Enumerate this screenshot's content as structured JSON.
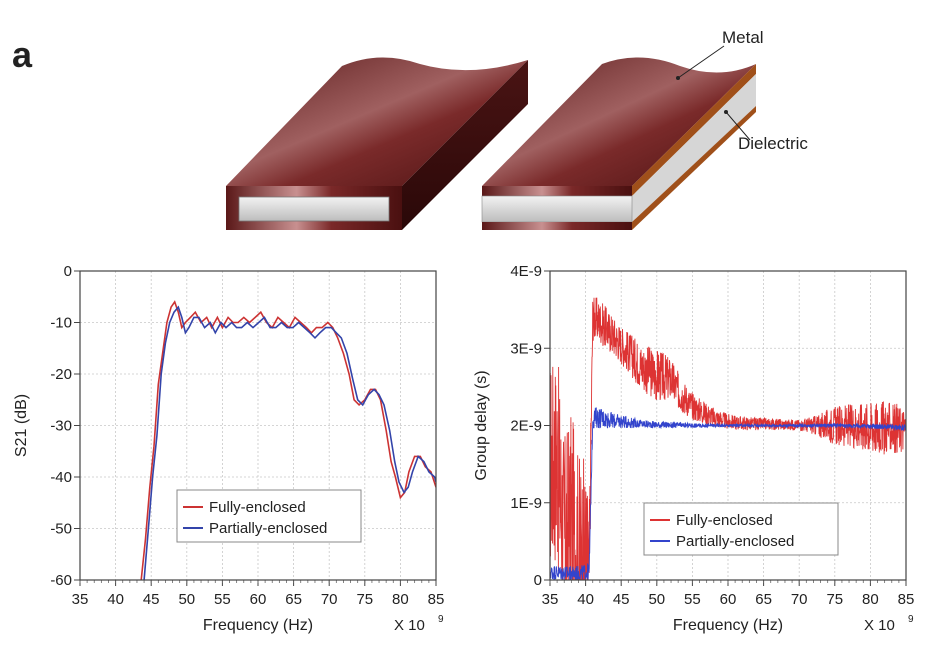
{
  "panel_label": "a",
  "illustration": {
    "label_metal": "Metal",
    "label_dielectric": "Dielectric",
    "metal_color": "#6a1c1c",
    "metal_edge_color": "#3a0e0e",
    "dielectric_color": "#d0d0d0",
    "copper_edge_color": "#a0501a"
  },
  "chart_data": [
    {
      "type": "line",
      "title": "",
      "xlabel": "Frequency (Hz)",
      "ylabel": "S21 (dB)",
      "x_multiplier": "X 10",
      "x_multiplier_exp": "9",
      "xlim": [
        35,
        85
      ],
      "ylim": [
        -60,
        0
      ],
      "xticks": [
        "35",
        "40",
        "45",
        "50",
        "55",
        "60",
        "65",
        "70",
        "75",
        "80",
        "85"
      ],
      "yticks": [
        "0",
        "-10",
        "-20",
        "-30",
        "-40",
        "-50",
        "-60"
      ],
      "grid": true,
      "legend_position": "bottom-center",
      "series": [
        {
          "name": "Fully-enclosed",
          "color": "#cc3333",
          "x": [
            43.6,
            44.2,
            44.8,
            45.4,
            46.0,
            46.6,
            47.2,
            47.8,
            48.3,
            48.8,
            49.3,
            49.8,
            50.5,
            51.2,
            52.0,
            52.8,
            53.5,
            54.3,
            55.0,
            55.8,
            56.5,
            57.2,
            58.0,
            58.8,
            59.6,
            60.4,
            61.2,
            62.0,
            62.8,
            63.6,
            64.4,
            65.2,
            66.0,
            66.8,
            67.5,
            68.2,
            69.0,
            69.8,
            70.5,
            71.2,
            72.0,
            72.8,
            73.5,
            74.2,
            75.0,
            75.8,
            76.5,
            77.2,
            78.0,
            78.7,
            79.3,
            80.0,
            80.6,
            81.2,
            82.0,
            82.8,
            83.5,
            84.3,
            85.0
          ],
          "y": [
            -60,
            -52,
            -42,
            -34,
            -22,
            -16,
            -10,
            -7,
            -6,
            -8,
            -11,
            -10,
            -9,
            -8,
            -10,
            -9,
            -11,
            -9,
            -11,
            -9,
            -10,
            -10,
            -9,
            -10,
            -9,
            -8,
            -10,
            -11,
            -9,
            -10,
            -11,
            -9,
            -10,
            -11,
            -12,
            -11,
            -11,
            -10,
            -11,
            -13,
            -16,
            -20,
            -25,
            -26,
            -25,
            -23,
            -23,
            -25,
            -31,
            -37,
            -40,
            -44,
            -43,
            -39,
            -36,
            -36,
            -38,
            -39,
            -42
          ]
        },
        {
          "name": "Partially-enclosed",
          "color": "#3344aa",
          "x": [
            44.0,
            44.6,
            45.2,
            45.8,
            46.4,
            47.0,
            47.6,
            48.2,
            48.8,
            49.3,
            49.8,
            50.3,
            51.0,
            51.7,
            52.5,
            53.3,
            54.0,
            54.8,
            55.5,
            56.3,
            57.0,
            57.7,
            58.5,
            59.3,
            60.1,
            60.9,
            61.7,
            62.5,
            63.3,
            64.1,
            64.9,
            65.7,
            66.5,
            67.3,
            68.0,
            68.7,
            69.5,
            70.3,
            71.0,
            71.7,
            72.5,
            73.3,
            74.0,
            74.7,
            75.5,
            76.3,
            77.0,
            77.7,
            78.5,
            79.2,
            79.8,
            80.5,
            81.1,
            81.7,
            82.5,
            83.3,
            84.0,
            84.8,
            85.0
          ],
          "y": [
            -60,
            -50,
            -40,
            -32,
            -20,
            -14,
            -10,
            -8,
            -7,
            -9,
            -12,
            -11,
            -9,
            -9,
            -11,
            -10,
            -12,
            -10,
            -11,
            -10,
            -11,
            -11,
            -10,
            -11,
            -10,
            -9,
            -11,
            -11,
            -10,
            -11,
            -11,
            -10,
            -11,
            -12,
            -13,
            -12,
            -11,
            -11,
            -12,
            -13,
            -16,
            -21,
            -25,
            -26,
            -24,
            -23,
            -24,
            -26,
            -31,
            -37,
            -41,
            -43,
            -42,
            -39,
            -36,
            -37,
            -39,
            -40,
            -41
          ]
        }
      ]
    },
    {
      "type": "line",
      "title": "",
      "xlabel": "Frequency (Hz)",
      "ylabel": "Group delay (s)",
      "x_multiplier": "X 10",
      "x_multiplier_exp": "9",
      "xlim": [
        35,
        85
      ],
      "ylim": [
        0,
        4e-09
      ],
      "xticks": [
        "35",
        "40",
        "45",
        "50",
        "55",
        "60",
        "65",
        "70",
        "75",
        "80",
        "85"
      ],
      "yticks": [
        "4E-9",
        "3E-9",
        "2E-9",
        "1E-9",
        "0"
      ],
      "grid": true,
      "legend_position": "bottom-center",
      "series": [
        {
          "name": "Fully-enclosed",
          "color": "#dd3333",
          "trend": {
            "x": [
              35,
              36,
              37,
              38,
              39,
              40,
              40.5,
              41,
              42,
              43,
              44,
              45,
              46,
              47,
              48,
              49,
              50,
              51,
              52,
              53,
              54,
              55,
              56,
              57,
              58,
              59,
              60,
              62,
              64,
              66,
              68,
              70,
              72,
              74,
              76,
              78,
              80,
              82,
              84,
              85
            ],
            "y": [
              1.5e-09,
              1.6e-09,
              5e-10,
              8e-10,
              3e-10,
              2e-10,
              1e-10,
              3.4e-09,
              3.35e-09,
              3.25e-09,
              3.15e-09,
              3.05e-09,
              2.95e-09,
              2.85e-09,
              2.75e-09,
              2.7e-09,
              2.65e-09,
              2.62e-09,
              2.6e-09,
              2.45e-09,
              2.35e-09,
              2.25e-09,
              2.2e-09,
              2.15e-09,
              2.1e-09,
              2.08e-09,
              2.05e-09,
              2.03e-09,
              2.02e-09,
              2.02e-09,
              2.01e-09,
              2.01e-09,
              2e-09,
              2e-09,
              2e-09,
              2e-09,
              1.98e-09,
              1.97e-09,
              1.96e-09,
              1.95e-09
            ]
          },
          "noise_amplitude": {
            "x": [
              35,
              40,
              41,
              45,
              50,
              55,
              60,
              65,
              70,
              72,
              75,
              78,
              80,
              82,
              85
            ],
            "a": [
              1.4e-09,
              1.4e-09,
              3e-10,
              2.5e-10,
              3.5e-10,
              1.8e-10,
              1e-10,
              8e-11,
              7e-11,
              1.2e-10,
              2.5e-10,
              3e-10,
              3.5e-10,
              3.5e-10,
              3e-10
            ]
          }
        },
        {
          "name": "Partially-enclosed",
          "color": "#3344cc",
          "trend": {
            "x": [
              35,
              36,
              38,
              40,
              40.5,
              41,
              42,
              43,
              44,
              45,
              46,
              48,
              50,
              55,
              60,
              65,
              70,
              75,
              80,
              85
            ],
            "y": [
              1e-10,
              1e-10,
              8e-11,
              1e-10,
              1e-10,
              2.1e-09,
              2.1e-09,
              2.08e-09,
              2.06e-09,
              2.05e-09,
              2.04e-09,
              2.02e-09,
              2.01e-09,
              2e-09,
              2e-09,
              2e-09,
              2e-09,
              2e-09,
              1.99e-09,
              1.97e-09
            ]
          },
          "noise_amplitude": {
            "x": [
              35,
              40,
              41,
              44,
              48,
              55,
              60,
              70,
              80,
              85
            ],
            "a": [
              1e-10,
              1e-10,
              1.5e-10,
              1e-10,
              5e-11,
              3e-11,
              2e-11,
              2e-11,
              3e-11,
              4e-11
            ]
          }
        }
      ]
    }
  ]
}
